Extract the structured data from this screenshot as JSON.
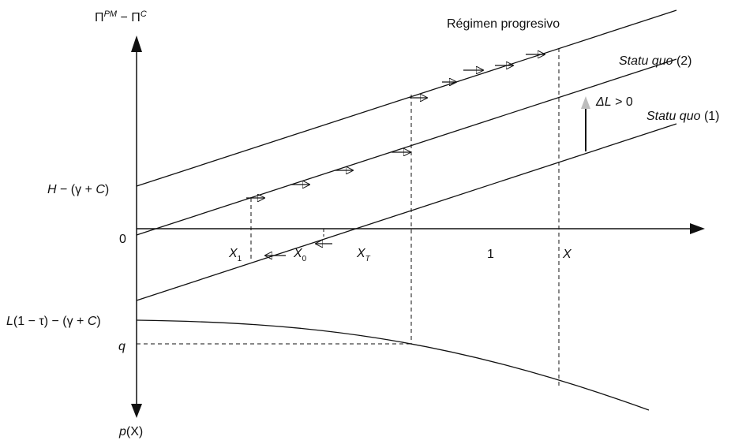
{
  "axis": {
    "top": {
      "main": "Π",
      "sup1": "PM",
      "mid": " − Π",
      "sup2": "C"
    },
    "bottom": {
      "main": "p",
      "rest": "(X)"
    }
  },
  "ylabels": {
    "h": {
      "a": "H",
      "b": " − (γ + ",
      "c": "C",
      "d": ")"
    },
    "zero": "0",
    "l": {
      "a": "L",
      "b": "(1 − τ) − (γ + ",
      "c": "C",
      "d": ")"
    },
    "q": "q"
  },
  "xlabels": {
    "x1": {
      "main": "X",
      "sub": "1"
    },
    "x0": {
      "main": "X",
      "sub": "0"
    },
    "xt": {
      "main": "X",
      "sub": "T"
    },
    "one": "1",
    "x": "X"
  },
  "lines": {
    "progresivo": "Régimen progresivo",
    "sq2": {
      "it": "Statu quo",
      "num": " (2)"
    },
    "sq1": {
      "it": "Statu quo",
      "num": " (1)"
    }
  },
  "delta": {
    "a": "ΔL",
    "b": " > 0"
  },
  "colors": {
    "ink": "#111111",
    "delta_arrow": "#bdbdbd"
  }
}
